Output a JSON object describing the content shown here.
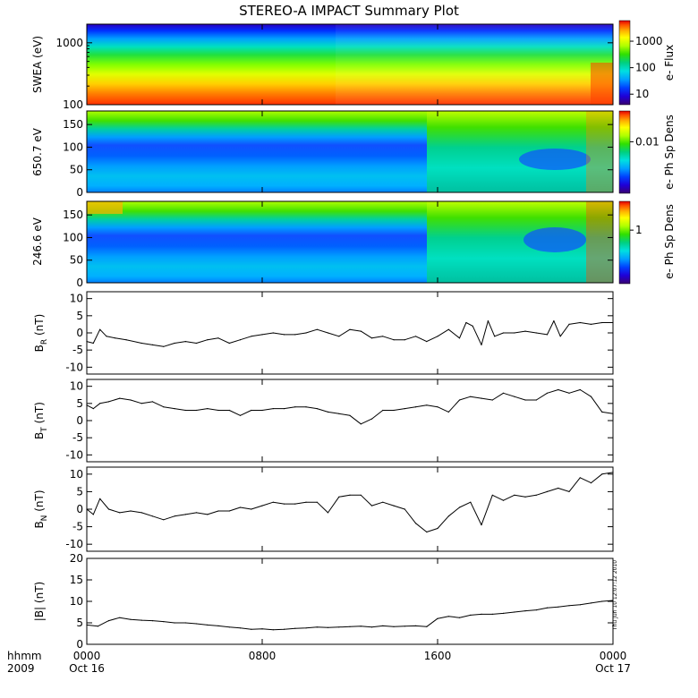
{
  "figure": {
    "title": "STEREO-A IMPACT Summary Plot",
    "footer": {
      "time_label": "hhmm",
      "year_label": "2009",
      "x_ticks": [
        {
          "hhmm": "0000",
          "date": "Oct 16"
        },
        {
          "hhmm": "0800",
          "date": ""
        },
        {
          "hhmm": "1600",
          "date": ""
        },
        {
          "hhmm": "0000",
          "date": "Oct 17"
        }
      ]
    },
    "timestamp": "Thu Jun 10 12:07:12 2010"
  },
  "colormap": [
    "#3a0070",
    "#1f00d8",
    "#0040ff",
    "#00a0ff",
    "#00e0e0",
    "#00d080",
    "#30e000",
    "#b0ff00",
    "#ffff00",
    "#ffb000",
    "#ff5000",
    "#e00000"
  ],
  "chart_data": [
    {
      "type": "heatmap",
      "ylabel": "SWEA (eV)",
      "ylim": [
        100,
        2000
      ],
      "yscale": "log",
      "yticks": [
        100,
        1000
      ],
      "ytick_labels": [
        "100",
        "1000"
      ],
      "colorbar": {
        "label": "e- Flux",
        "scale": "log",
        "ticks": [
          10,
          100,
          1000
        ],
        "tick_labels": [
          "10",
          "100",
          "1000"
        ]
      },
      "x_range_hours": [
        0,
        24
      ],
      "description_values": {
        "1000eV_band": "green-yellow",
        "100eV_band": "orange-red",
        "top_band": "blue-purple"
      }
    },
    {
      "type": "heatmap",
      "ylabel": "650.7 eV",
      "ylim": [
        0,
        180
      ],
      "yticks": [
        0,
        50,
        100,
        150
      ],
      "colorbar": {
        "label": "e- Ph Sp Dens",
        "scale": "log",
        "ticks": [
          0.01
        ],
        "tick_labels": [
          "0.01"
        ]
      },
      "x_range_hours": [
        0,
        24
      ]
    },
    {
      "type": "heatmap",
      "ylabel": "246.6 eV",
      "ylim": [
        0,
        180
      ],
      "yticks": [
        0,
        50,
        100,
        150
      ],
      "colorbar": {
        "label": "e- Ph Sp Dens",
        "scale": "log",
        "ticks": [
          1
        ],
        "tick_labels": [
          "1"
        ]
      },
      "x_range_hours": [
        0,
        24
      ]
    },
    {
      "type": "line",
      "ylabel_main": "B",
      "ylabel_sub": "R",
      "ylabel_unit": " (nT)",
      "ylim": [
        -12,
        12
      ],
      "yticks": [
        -10,
        -5,
        0,
        5,
        10
      ],
      "x_hours": [
        0,
        0.3,
        0.6,
        0.9,
        1.3,
        1.8,
        2.5,
        3.0,
        3.5,
        4.0,
        4.5,
        5.0,
        5.5,
        6.0,
        6.5,
        7.0,
        7.5,
        8.0,
        8.5,
        9.0,
        9.5,
        10.0,
        10.5,
        11.0,
        11.5,
        12.0,
        12.5,
        13.0,
        13.5,
        14.0,
        14.5,
        15.0,
        15.5,
        16.0,
        16.5,
        17.0,
        17.3,
        17.6,
        18.0,
        18.3,
        18.6,
        19.0,
        19.5,
        20.0,
        20.5,
        21.0,
        21.3,
        21.6,
        22.0,
        22.5,
        23.0,
        23.5,
        24.0
      ],
      "values": [
        -2.5,
        -3.0,
        1.0,
        -1.0,
        -1.5,
        -2.0,
        -3.0,
        -3.5,
        -4.0,
        -3.0,
        -2.5,
        -3.0,
        -2.0,
        -1.5,
        -3.0,
        -2.0,
        -1.0,
        -0.5,
        0.0,
        -0.5,
        -0.5,
        0.0,
        1.0,
        0.0,
        -1.0,
        1.0,
        0.5,
        -1.5,
        -1.0,
        -2.0,
        -2.0,
        -1.0,
        -2.5,
        -1.0,
        1.0,
        -1.5,
        3.0,
        2.0,
        -3.5,
        3.5,
        -1.0,
        0.0,
        0.0,
        0.5,
        0.0,
        -0.5,
        3.5,
        -1.0,
        2.5,
        3.0,
        2.5,
        3.0,
        3.0
      ]
    },
    {
      "type": "line",
      "ylabel_main": "B",
      "ylabel_sub": "T",
      "ylabel_unit": " (nT)",
      "ylim": [
        -12,
        12
      ],
      "yticks": [
        -10,
        -5,
        0,
        5,
        10
      ],
      "x_hours": [
        0,
        0.3,
        0.6,
        1.0,
        1.5,
        2.0,
        2.5,
        3.0,
        3.5,
        4.0,
        4.5,
        5.0,
        5.5,
        6.0,
        6.5,
        7.0,
        7.5,
        8.0,
        8.5,
        9.0,
        9.5,
        10.0,
        10.5,
        11.0,
        11.5,
        12.0,
        12.5,
        13.0,
        13.5,
        14.0,
        14.5,
        15.0,
        15.5,
        16.0,
        16.5,
        17.0,
        17.5,
        18.0,
        18.5,
        19.0,
        19.5,
        20.0,
        20.5,
        21.0,
        21.5,
        22.0,
        22.5,
        23.0,
        23.5,
        24.0
      ],
      "values": [
        4.5,
        3.5,
        5.0,
        5.5,
        6.5,
        6.0,
        5.0,
        5.5,
        4.0,
        3.5,
        3.0,
        3.0,
        3.5,
        3.0,
        3.0,
        1.5,
        3.0,
        3.0,
        3.5,
        3.5,
        4.0,
        4.0,
        3.5,
        2.5,
        2.0,
        1.5,
        -1.0,
        0.5,
        3.0,
        3.0,
        3.5,
        4.0,
        4.5,
        4.0,
        2.5,
        6.0,
        7.0,
        6.5,
        6.0,
        8.0,
        7.0,
        6.0,
        6.0,
        8.0,
        9.0,
        8.0,
        9.0,
        7.0,
        2.5,
        2.0
      ]
    },
    {
      "type": "line",
      "ylabel_main": "B",
      "ylabel_sub": "N",
      "ylabel_unit": " (nT)",
      "ylim": [
        -12,
        12
      ],
      "yticks": [
        -10,
        -5,
        0,
        5,
        10
      ],
      "x_hours": [
        0,
        0.3,
        0.6,
        1.0,
        1.5,
        2.0,
        2.5,
        3.0,
        3.5,
        4.0,
        4.5,
        5.0,
        5.5,
        6.0,
        6.5,
        7.0,
        7.5,
        8.0,
        8.5,
        9.0,
        9.5,
        10.0,
        10.5,
        11.0,
        11.5,
        12.0,
        12.5,
        13.0,
        13.5,
        14.0,
        14.5,
        15.0,
        15.5,
        16.0,
        16.5,
        17.0,
        17.5,
        18.0,
        18.5,
        19.0,
        19.5,
        20.0,
        20.5,
        21.0,
        21.5,
        22.0,
        22.5,
        23.0,
        23.5,
        24.0
      ],
      "values": [
        0.0,
        -1.5,
        3.0,
        0.0,
        -1.0,
        -0.5,
        -1.0,
        -2.0,
        -3.0,
        -2.0,
        -1.5,
        -1.0,
        -1.5,
        -0.5,
        -0.5,
        0.5,
        0.0,
        1.0,
        2.0,
        1.5,
        1.5,
        2.0,
        2.0,
        -1.0,
        3.5,
        4.0,
        4.0,
        1.0,
        2.0,
        1.0,
        0.0,
        -4.0,
        -6.5,
        -5.5,
        -2.0,
        0.5,
        2.0,
        -4.5,
        4.0,
        2.5,
        4.0,
        3.5,
        4.0,
        5.0,
        6.0,
        5.0,
        9.0,
        7.5,
        10.0,
        10.5
      ]
    },
    {
      "type": "line",
      "ylabel": "|B| (nT)",
      "ylim": [
        0,
        20
      ],
      "yticks": [
        0,
        5,
        10,
        15,
        20
      ],
      "x_hours": [
        0,
        0.5,
        1.0,
        1.5,
        2.0,
        2.5,
        3.0,
        3.5,
        4.0,
        4.5,
        5.0,
        5.5,
        6.0,
        6.5,
        7.0,
        7.5,
        8.0,
        8.5,
        9.0,
        9.5,
        10.0,
        10.5,
        11.0,
        11.5,
        12.0,
        12.5,
        13.0,
        13.5,
        14.0,
        14.5,
        15.0,
        15.5,
        16.0,
        16.5,
        17.0,
        17.5,
        18.0,
        18.5,
        19.0,
        19.5,
        20.0,
        20.5,
        21.0,
        21.5,
        22.0,
        22.5,
        23.0,
        23.5,
        24.0
      ],
      "values": [
        4.5,
        4.2,
        5.5,
        6.2,
        5.8,
        5.6,
        5.5,
        5.3,
        5.0,
        5.0,
        4.8,
        4.5,
        4.3,
        4.0,
        3.8,
        3.5,
        3.6,
        3.4,
        3.5,
        3.7,
        3.8,
        4.0,
        3.9,
        4.0,
        4.1,
        4.2,
        4.0,
        4.3,
        4.1,
        4.2,
        4.3,
        4.1,
        6.0,
        6.5,
        6.2,
        6.8,
        7.0,
        7.0,
        7.2,
        7.5,
        7.8,
        8.0,
        8.5,
        8.7,
        9.0,
        9.2,
        9.6,
        10.0,
        10.2
      ]
    }
  ]
}
